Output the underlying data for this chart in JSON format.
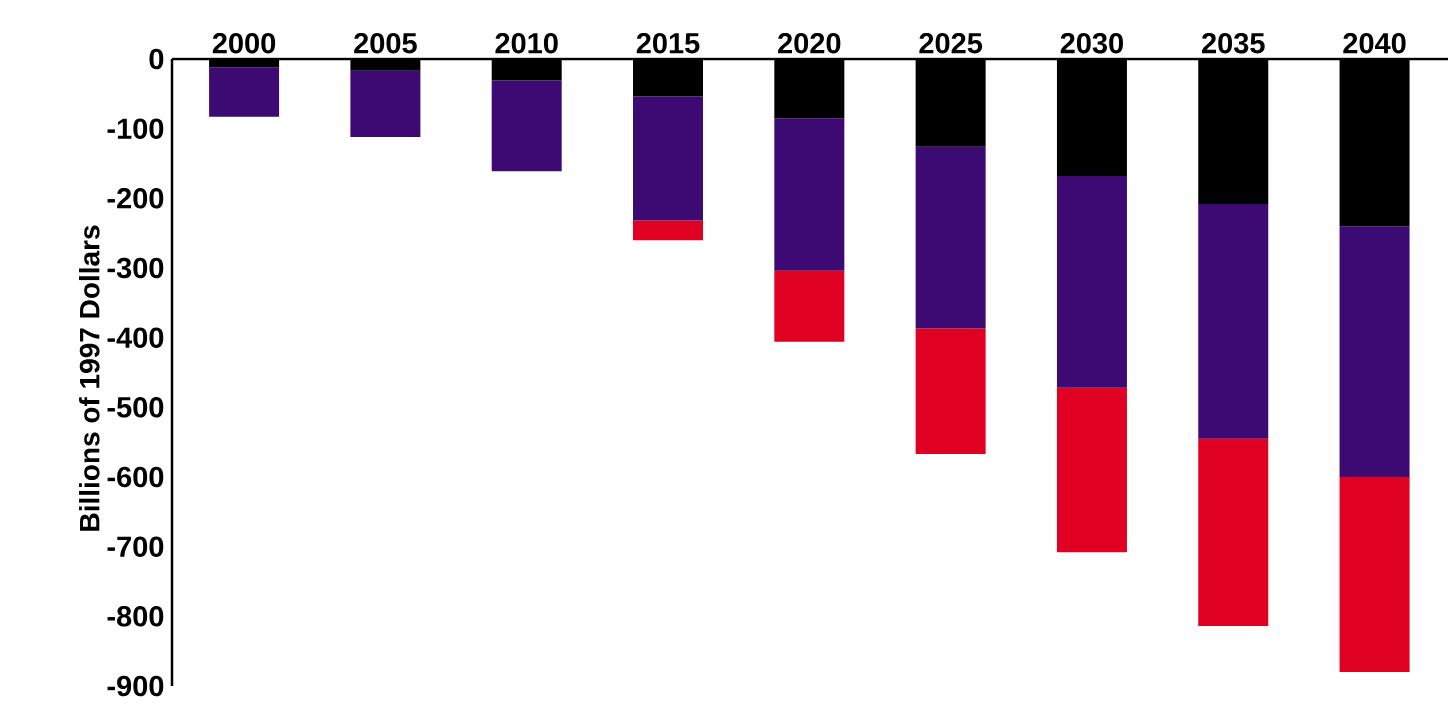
{
  "chart_data": {
    "type": "bar",
    "stacked": true,
    "ylabel": "Billions of 1997 Dollars",
    "categories": [
      "2000",
      "2005",
      "2010",
      "2015",
      "2020",
      "2025",
      "2030",
      "2035",
      "2040"
    ],
    "series": [
      {
        "color": "#000000",
        "values": [
          -12,
          -17,
          -31,
          -54,
          -85,
          -126,
          -168,
          -208,
          -240
        ]
      },
      {
        "color": "#3d0a73",
        "values": [
          -71,
          -95,
          -130,
          -178,
          -219,
          -261,
          -304,
          -337,
          -360
        ]
      },
      {
        "color": "#e00022",
        "values": [
          0,
          0,
          0,
          -28,
          -102,
          -180,
          -236,
          -269,
          -280
        ]
      }
    ],
    "ylim": [
      -900,
      0
    ],
    "yticks": [
      0,
      -100,
      -200,
      -300,
      -400,
      -500,
      -600,
      -700,
      -800,
      -900
    ]
  }
}
